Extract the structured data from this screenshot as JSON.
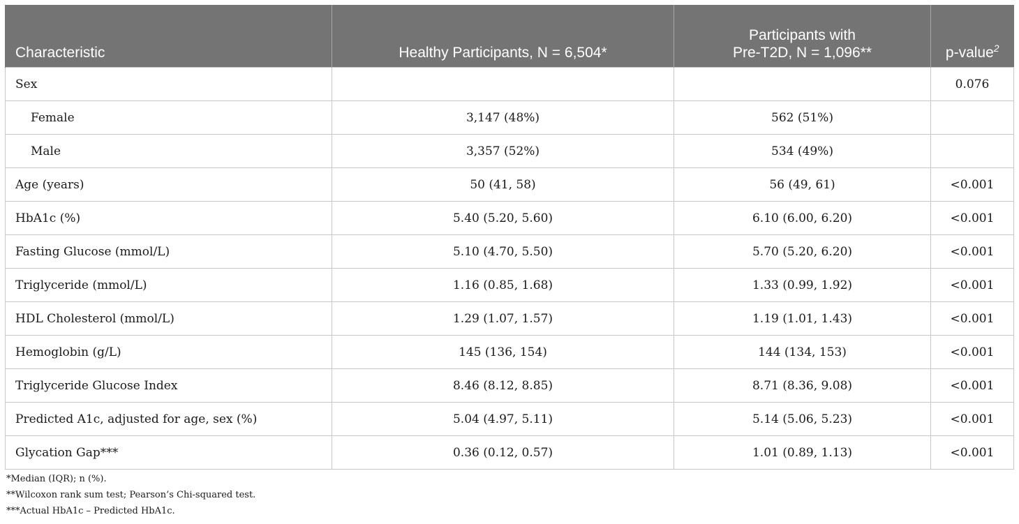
{
  "header": {
    "characteristic": "Characteristic",
    "healthy": "Healthy Participants, N = 6,504*",
    "pre_line1": "Participants with",
    "pre_line2": "Pre-T2D, N = 1,096**",
    "pvalue": "p-value",
    "pvalue_sup": "2"
  },
  "rows": [
    {
      "label": "Sex",
      "healthy": "",
      "pre": "",
      "p": "0.076"
    },
    {
      "label": "Female",
      "healthy": "3,147 (48%)",
      "pre": "562 (51%)",
      "p": ""
    },
    {
      "label": "Male",
      "healthy": "3,357 (52%)",
      "pre": "534 (49%)",
      "p": ""
    },
    {
      "label": "Age (years)",
      "healthy": "50 (41, 58)",
      "pre": "56 (49, 61)",
      "p": "<0.001"
    },
    {
      "label": "HbA1c (%)",
      "healthy": "5.40 (5.20, 5.60)",
      "pre": "6.10 (6.00, 6.20)",
      "p": "<0.001"
    },
    {
      "label": "Fasting Glucose (mmol/L)",
      "healthy": "5.10 (4.70, 5.50)",
      "pre": "5.70 (5.20, 6.20)",
      "p": "<0.001"
    },
    {
      "label": "Triglyceride (mmol/L)",
      "healthy": "1.16 (0.85, 1.68)",
      "pre": "1.33 (0.99, 1.92)",
      "p": "<0.001"
    },
    {
      "label": "HDL Cholesterol (mmol/L)",
      "healthy": "1.29 (1.07, 1.57)",
      "pre": "1.19 (1.01, 1.43)",
      "p": "<0.001"
    },
    {
      "label": "Hemoglobin (g/L)",
      "healthy": "145 (136, 154)",
      "pre": "144 (134, 153)",
      "p": "<0.001"
    },
    {
      "label": "Triglyceride Glucose Index",
      "healthy": "8.46 (8.12, 8.85)",
      "pre": "8.71 (8.36, 9.08)",
      "p": "<0.001"
    },
    {
      "label": "Predicted A1c, adjusted for age, sex (%)",
      "healthy": "5.04 (4.97, 5.11)",
      "pre": "5.14 (5.06, 5.23)",
      "p": "<0.001"
    },
    {
      "label": "Glycation Gap***",
      "healthy": "0.36 (0.12, 0.57)",
      "pre": "1.01 (0.89, 1.13)",
      "p": "<0.001"
    }
  ],
  "notes": [
    "*Median (IQR); n (%).",
    "**Wilcoxon rank sum test; Pearson’s Chi-squared test.",
    "***Actual HbA1c – Predicted HbA1c."
  ]
}
